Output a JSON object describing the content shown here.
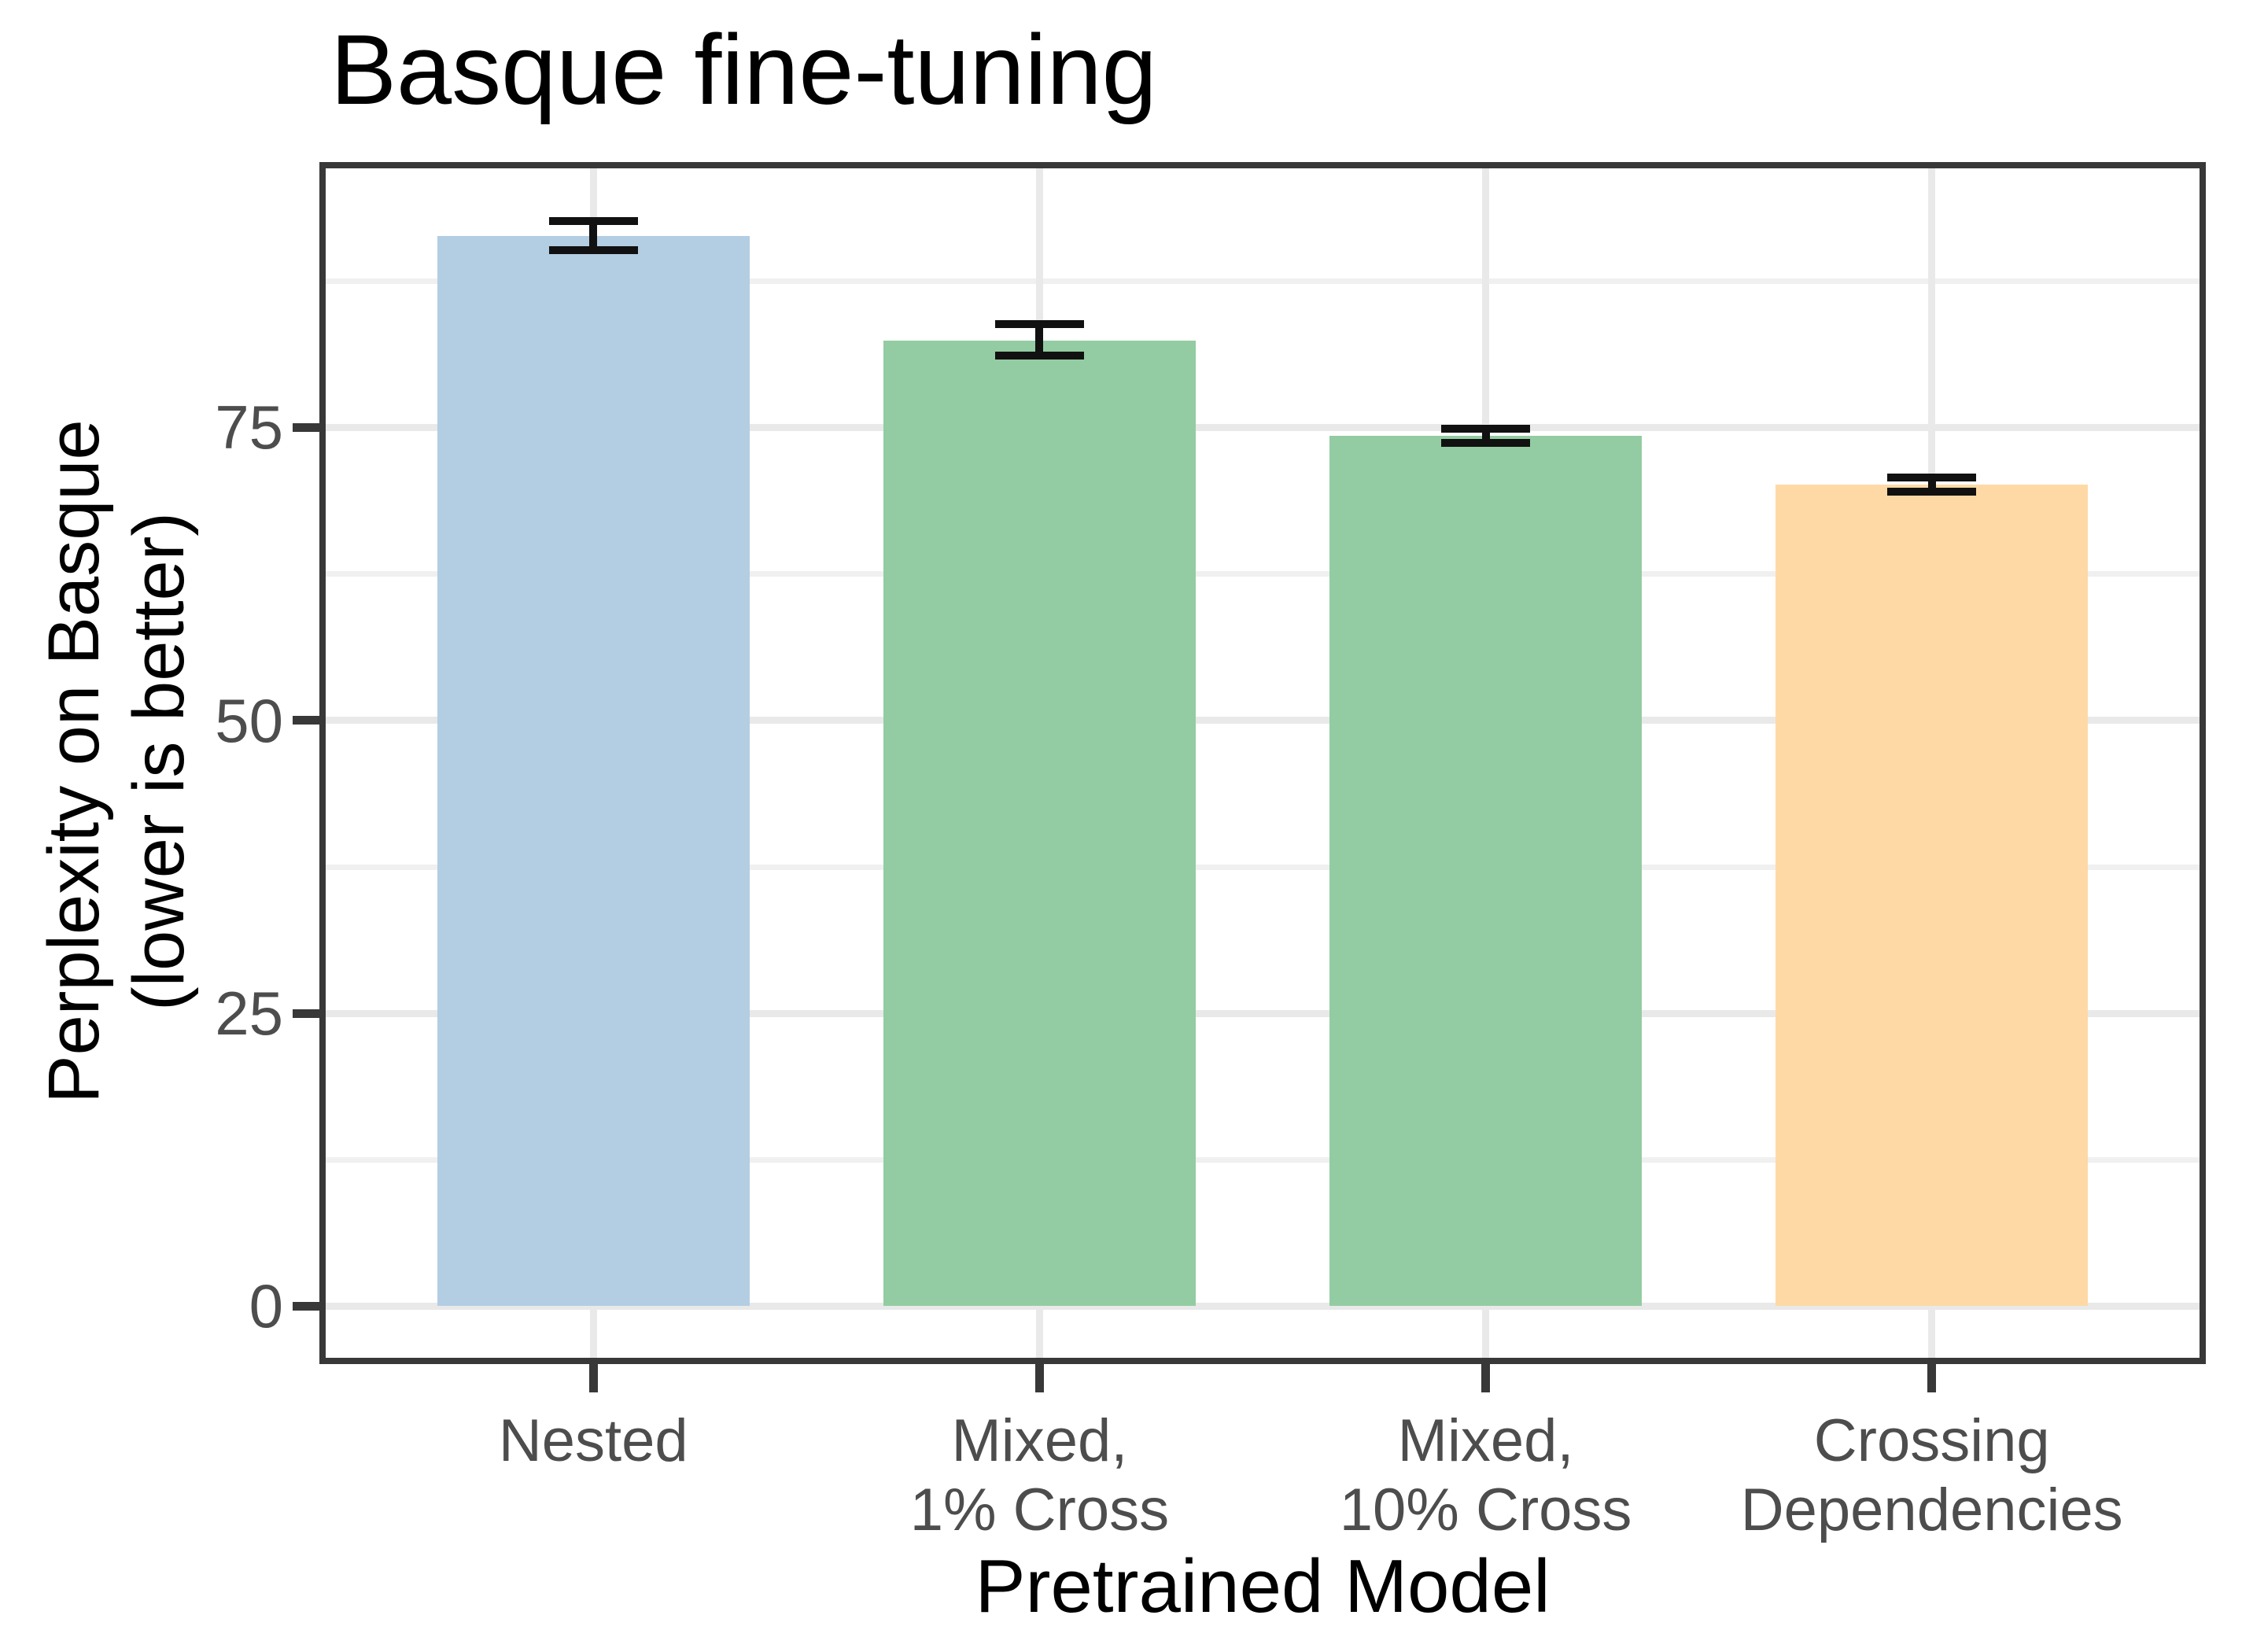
{
  "chart_data": {
    "type": "bar",
    "title": "Basque fine-tuning",
    "xlabel": "Pretrained Model",
    "ylabel_lines": [
      "Perplexity on Basque",
      "(lower is better)"
    ],
    "categories": [
      {
        "name": "Nested",
        "lines": [
          "Nested"
        ]
      },
      {
        "name": "Mixed, 1% Cross",
        "lines": [
          "Mixed,",
          "1% Cross"
        ]
      },
      {
        "name": "Mixed, 10% Cross",
        "lines": [
          "Mixed,",
          "10% Cross"
        ]
      },
      {
        "name": "Crossing Dependencies",
        "lines": [
          "Crossing",
          "Dependencies"
        ]
      }
    ],
    "values": [
      91.3,
      82.4,
      74.3,
      70.1
    ],
    "error_low": [
      90.1,
      81.1,
      73.7,
      69.5
    ],
    "error_high": [
      92.6,
      83.8,
      74.9,
      70.7
    ],
    "bar_colors": [
      "#b3cde3",
      "#93cca2",
      "#93cca2",
      "#fed9a6"
    ],
    "yticks": [
      {
        "value": 0,
        "label": "0"
      },
      {
        "value": 25,
        "label": "25"
      },
      {
        "value": 50,
        "label": "50"
      },
      {
        "value": 75,
        "label": "75"
      }
    ],
    "yticks_minor": [
      12.5,
      37.5,
      62.5,
      87.5
    ],
    "ylim": [
      -4.4,
      97.1
    ],
    "grid": "major and minor horizontal, major vertical at category centers",
    "legend": "none",
    "accent_colors": {
      "panel_border": "#383838",
      "gridline_major": "#e9e9e9",
      "gridline_minor": "#f0f0f0",
      "tick_text": "#4d4d4d",
      "errorbar": "#111111"
    }
  }
}
